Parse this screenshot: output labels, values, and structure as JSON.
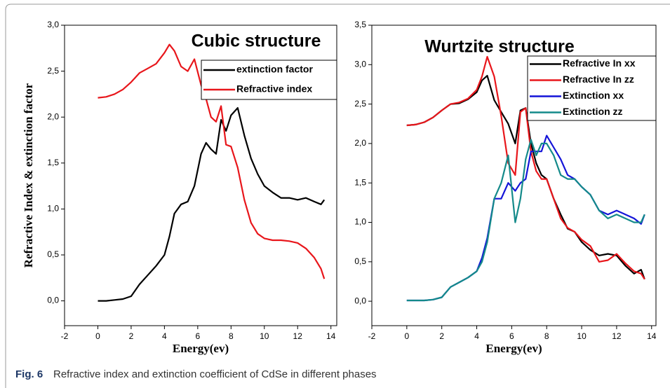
{
  "chart_data": [
    {
      "type": "line",
      "title": "Cubic structure",
      "x_label": "Energy(ev)",
      "y_label": "Refractive Index & extinction factor",
      "x": [
        0,
        0.5,
        1,
        1.5,
        2,
        2.5,
        3,
        3.5,
        4,
        4.3,
        4.6,
        5,
        5.4,
        5.8,
        6.2,
        6.5,
        6.8,
        7.1,
        7.4,
        7.7,
        8,
        8.4,
        8.8,
        9.2,
        9.6,
        10,
        10.5,
        11,
        11.5,
        12,
        12.5,
        13,
        13.4,
        13.6
      ],
      "series": [
        {
          "name": "extinction factor",
          "color": "#000000",
          "values": [
            0,
            0,
            0.01,
            0.02,
            0.05,
            0.18,
            0.28,
            0.38,
            0.5,
            0.7,
            0.95,
            1.05,
            1.08,
            1.25,
            1.6,
            1.72,
            1.65,
            1.6,
            1.97,
            1.85,
            2.02,
            2.1,
            1.8,
            1.55,
            1.38,
            1.25,
            1.18,
            1.12,
            1.12,
            1.1,
            1.12,
            1.08,
            1.05,
            1.1
          ]
        },
        {
          "name": "Refractive index",
          "color": "#e8161b",
          "values": [
            2.21,
            2.22,
            2.25,
            2.3,
            2.38,
            2.48,
            2.53,
            2.58,
            2.7,
            2.79,
            2.72,
            2.55,
            2.5,
            2.63,
            2.35,
            2.2,
            2.0,
            1.95,
            2.12,
            1.7,
            1.68,
            1.45,
            1.1,
            0.85,
            0.73,
            0.68,
            0.66,
            0.66,
            0.65,
            0.63,
            0.57,
            0.47,
            0.35,
            0.24
          ]
        }
      ],
      "xlim": [
        -2,
        14.35
      ],
      "xticks": [
        -2,
        0,
        2,
        4,
        6,
        8,
        10,
        12,
        14
      ],
      "ylim": [
        -0.27,
        3.0
      ],
      "yticks": [
        {
          "value": 0,
          "label": "0,0"
        },
        {
          "value": 0.5,
          "label": "0,5"
        },
        {
          "value": 1,
          "label": "1,0"
        },
        {
          "value": 1.5,
          "label": "1,5"
        },
        {
          "value": 2,
          "label": "2,0"
        },
        {
          "value": 2.5,
          "label": "2,5"
        },
        {
          "value": 3,
          "label": "3,0"
        }
      ],
      "legend": "upper right"
    },
    {
      "type": "line",
      "title": "Wurtzite structure",
      "x_label": "Energy(ev)",
      "x": [
        0,
        0.5,
        1,
        1.5,
        2,
        2.5,
        3,
        3.5,
        4,
        4.3,
        4.6,
        5,
        5.4,
        5.8,
        6.2,
        6.5,
        6.8,
        7.1,
        7.4,
        7.7,
        8,
        8.4,
        8.8,
        9.2,
        9.6,
        10,
        10.5,
        11,
        11.5,
        12,
        12.5,
        13,
        13.4,
        13.6
      ],
      "series": [
        {
          "name": "Refractive In xx",
          "color": "#000000",
          "values": [
            2.23,
            2.24,
            2.27,
            2.33,
            2.42,
            2.5,
            2.51,
            2.56,
            2.65,
            2.8,
            2.86,
            2.55,
            2.4,
            2.25,
            2.0,
            2.42,
            2.45,
            2.0,
            1.75,
            1.6,
            1.55,
            1.3,
            1.1,
            0.92,
            0.88,
            0.75,
            0.65,
            0.58,
            0.6,
            0.58,
            0.45,
            0.35,
            0.4,
            0.28
          ]
        },
        {
          "name": "Refractive In zz",
          "color": "#e8161b",
          "values": [
            2.23,
            2.24,
            2.27,
            2.33,
            2.42,
            2.5,
            2.52,
            2.57,
            2.68,
            2.85,
            3.1,
            2.85,
            2.35,
            1.75,
            1.6,
            2.4,
            2.45,
            1.9,
            1.65,
            1.55,
            1.55,
            1.3,
            1.05,
            0.93,
            0.88,
            0.78,
            0.7,
            0.5,
            0.52,
            0.6,
            0.48,
            0.38,
            0.35,
            0.28
          ]
        },
        {
          "name": "Extinction xx",
          "color": "#1414d8",
          "values": [
            0.01,
            0.01,
            0.01,
            0.02,
            0.05,
            0.18,
            0.24,
            0.3,
            0.38,
            0.55,
            0.8,
            1.3,
            1.3,
            1.5,
            1.4,
            1.5,
            1.55,
            1.9,
            1.9,
            1.9,
            2.1,
            1.95,
            1.8,
            1.6,
            1.55,
            1.45,
            1.35,
            1.15,
            1.1,
            1.15,
            1.1,
            1.05,
            0.98,
            1.1
          ]
        },
        {
          "name": "Extinction zz",
          "color": "#148a8a",
          "values": [
            0.01,
            0.01,
            0.01,
            0.02,
            0.05,
            0.18,
            0.24,
            0.3,
            0.38,
            0.5,
            0.75,
            1.3,
            1.5,
            1.85,
            1.0,
            1.3,
            1.8,
            2.05,
            1.85,
            2.0,
            2.0,
            1.85,
            1.6,
            1.55,
            1.55,
            1.45,
            1.35,
            1.15,
            1.05,
            1.1,
            1.05,
            1.0,
            1.0,
            1.1
          ]
        }
      ],
      "xlim": [
        -2,
        14.25
      ],
      "xticks": [
        -2,
        0,
        2,
        4,
        6,
        8,
        10,
        12,
        14
      ],
      "ylim": [
        -0.31,
        3.5
      ],
      "yticks": [
        {
          "value": 0,
          "label": "0,0"
        },
        {
          "value": 0.5,
          "label": "0,5"
        },
        {
          "value": 1,
          "label": "1,0"
        },
        {
          "value": 1.5,
          "label": "1,5"
        },
        {
          "value": 2,
          "label": "2,0"
        },
        {
          "value": 2.5,
          "label": "2,5"
        },
        {
          "value": 3,
          "label": "3,0"
        },
        {
          "value": 3.5,
          "label": "3,5"
        }
      ],
      "legend": "upper right"
    }
  ],
  "caption": {
    "label": "Fig. 6",
    "text": "Refractive index and extinction coefficient of CdSe in different phases"
  }
}
